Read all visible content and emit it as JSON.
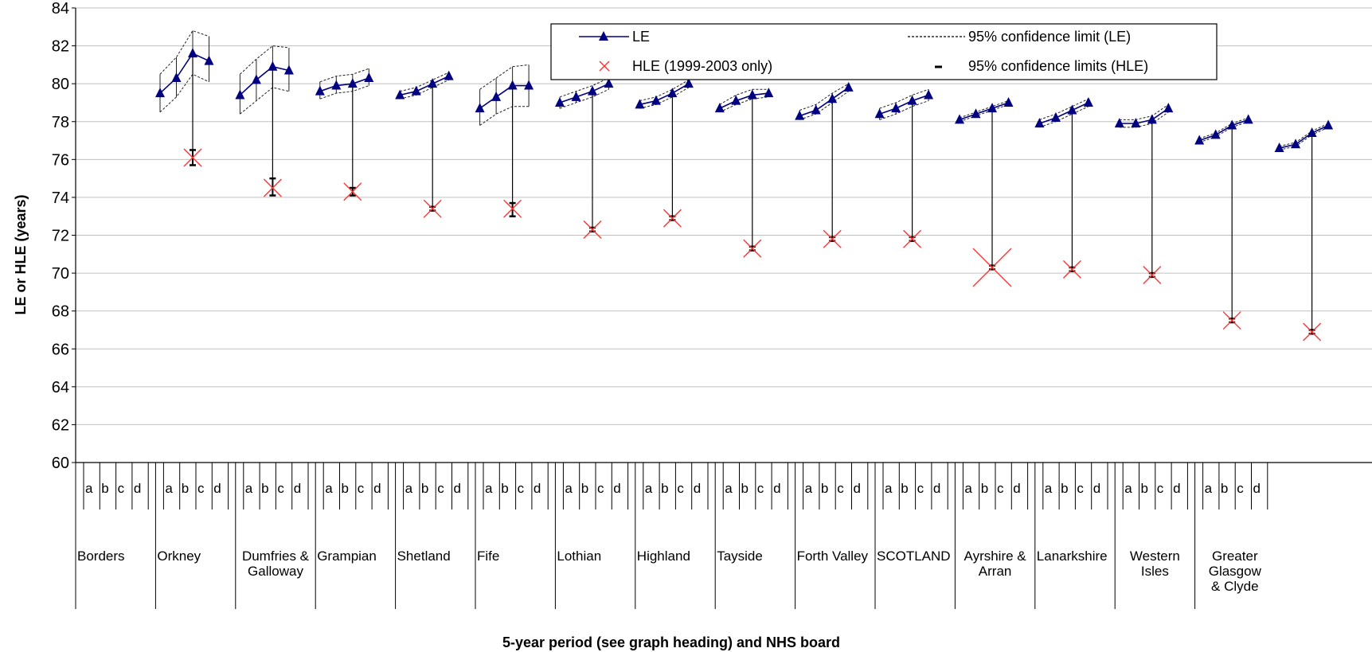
{
  "chart_data": {
    "type": "line",
    "ylabel": "LE or HLE (years)",
    "xlabel": "5-year period (see graph heading) and NHS board",
    "ylim": [
      60,
      84
    ],
    "yticks": [
      60,
      62,
      64,
      66,
      68,
      70,
      72,
      74,
      76,
      78,
      80,
      82,
      84
    ],
    "periods": [
      "a",
      "b",
      "c",
      "d"
    ],
    "grid": "horizontal",
    "legend": {
      "position": "top-right",
      "items": [
        {
          "key": "le",
          "label": "LE"
        },
        {
          "key": "le_ci",
          "label": "95% confidence limit (LE)"
        },
        {
          "key": "hle",
          "label": "HLE (1999-2003  only)"
        },
        {
          "key": "hle_ci",
          "label": "95% confidence limits (HLE)"
        }
      ]
    },
    "colors": {
      "le": "#000080",
      "hle": "#ff3333",
      "grid": "#c0c0c0"
    },
    "boards": [
      {
        "name": "Borders",
        "lines": [
          "Borders"
        ],
        "le": [
          79.5,
          80.3,
          81.6,
          81.2
        ],
        "le_lo": [
          78.5,
          79.3,
          80.5,
          80.1
        ],
        "le_hi": [
          80.5,
          81.4,
          82.8,
          82.5
        ],
        "hle": 76.1,
        "hle_lo": 75.7,
        "hle_hi": 76.5
      },
      {
        "name": "Orkney",
        "lines": [
          "Orkney"
        ],
        "le": [
          79.4,
          80.2,
          80.9,
          80.7
        ],
        "le_lo": [
          78.4,
          79.1,
          79.8,
          79.6
        ],
        "le_hi": [
          80.5,
          81.3,
          82.0,
          81.9
        ],
        "hle": 74.5,
        "hle_lo": 74.1,
        "hle_hi": 75.0
      },
      {
        "name": "Dumfries & Galloway",
        "lines": [
          "Dumfries &",
          "Galloway"
        ],
        "le": [
          79.6,
          79.9,
          80.0,
          80.3
        ],
        "le_lo": [
          79.2,
          79.5,
          79.6,
          79.9
        ],
        "le_hi": [
          80.1,
          80.4,
          80.5,
          80.8
        ],
        "hle": 74.3,
        "hle_lo": 74.1,
        "hle_hi": 74.5
      },
      {
        "name": "Grampian",
        "lines": [
          "Grampian"
        ],
        "le": [
          79.4,
          79.6,
          80.0,
          80.4
        ],
        "le_lo": [
          79.2,
          79.4,
          79.8,
          80.2
        ],
        "le_hi": [
          79.6,
          79.8,
          80.2,
          80.6
        ],
        "hle": 73.4,
        "hle_lo": 73.3,
        "hle_hi": 73.5
      },
      {
        "name": "Shetland",
        "lines": [
          "Shetland"
        ],
        "le": [
          78.7,
          79.3,
          79.9,
          79.9
        ],
        "le_lo": [
          77.8,
          78.4,
          78.8,
          78.8
        ],
        "le_hi": [
          79.7,
          80.3,
          80.9,
          81.0
        ],
        "hle": 73.4,
        "hle_lo": 73.0,
        "hle_hi": 73.7
      },
      {
        "name": "Fife",
        "lines": [
          "Fife"
        ],
        "le": [
          79.0,
          79.3,
          79.6,
          80.0
        ],
        "le_lo": [
          78.7,
          79.0,
          79.3,
          79.7
        ],
        "le_hi": [
          79.3,
          79.6,
          79.9,
          80.3
        ],
        "hle": 72.3,
        "hle_lo": 72.2,
        "hle_hi": 72.4
      },
      {
        "name": "Lothian",
        "lines": [
          "Lothian"
        ],
        "le": [
          78.9,
          79.1,
          79.5,
          80.0
        ],
        "le_lo": [
          78.7,
          78.9,
          79.3,
          79.8
        ],
        "le_hi": [
          79.1,
          79.3,
          79.7,
          80.2
        ],
        "hle": 72.9,
        "hle_lo": 72.8,
        "hle_hi": 73.0
      },
      {
        "name": "Highland",
        "lines": [
          "Highland"
        ],
        "le": [
          78.7,
          79.1,
          79.4,
          79.5
        ],
        "le_lo": [
          78.5,
          78.9,
          79.2,
          79.3
        ],
        "le_hi": [
          78.9,
          79.4,
          79.7,
          79.7
        ],
        "hle": 71.3,
        "hle_lo": 71.2,
        "hle_hi": 71.4
      },
      {
        "name": "Tayside",
        "lines": [
          "Tayside"
        ],
        "le": [
          78.3,
          78.6,
          79.2,
          79.8
        ],
        "le_lo": [
          78.1,
          78.4,
          79.0,
          79.6
        ],
        "le_hi": [
          78.6,
          78.9,
          79.5,
          80.0
        ],
        "hle": 71.8,
        "hle_lo": 71.7,
        "hle_hi": 71.9
      },
      {
        "name": "Forth Valley",
        "lines": [
          "Forth Valley"
        ],
        "le": [
          78.4,
          78.7,
          79.1,
          79.4
        ],
        "le_lo": [
          78.1,
          78.4,
          78.8,
          79.1
        ],
        "le_hi": [
          78.7,
          79.0,
          79.4,
          79.7
        ],
        "hle": 71.8,
        "hle_lo": 71.7,
        "hle_hi": 71.9
      },
      {
        "name": "SCOTLAND",
        "lines": [
          "SCOTLAND"
        ],
        "le": [
          78.1,
          78.4,
          78.7,
          79.0
        ],
        "le_lo": [
          78.0,
          78.3,
          78.6,
          78.9
        ],
        "le_hi": [
          78.2,
          78.5,
          78.8,
          79.1
        ],
        "hle": 70.3,
        "hle_lo": 70.2,
        "hle_hi": 70.4,
        "hle_large": true
      },
      {
        "name": "Ayrshire & Arran",
        "lines": [
          "Ayrshire &",
          "Arran"
        ],
        "le": [
          77.9,
          78.2,
          78.6,
          79.0
        ],
        "le_lo": [
          77.7,
          78.0,
          78.4,
          78.8
        ],
        "le_hi": [
          78.1,
          78.4,
          78.8,
          79.2
        ],
        "hle": 70.2,
        "hle_lo": 70.1,
        "hle_hi": 70.3
      },
      {
        "name": "Lanarkshire",
        "lines": [
          "Lanarkshire"
        ],
        "le": [
          77.9,
          77.9,
          78.1,
          78.7
        ],
        "le_lo": [
          77.7,
          77.7,
          77.9,
          78.5
        ],
        "le_hi": [
          78.1,
          78.1,
          78.3,
          78.9
        ],
        "hle": 69.9,
        "hle_lo": 69.8,
        "hle_hi": 70.0
      },
      {
        "name": "Western Isles",
        "lines": [
          "Western",
          "Isles"
        ],
        "le": [
          77.0,
          77.3,
          77.8,
          78.1
        ],
        "le_lo": [
          76.9,
          77.2,
          77.7,
          78.0
        ],
        "le_hi": [
          77.1,
          77.4,
          77.9,
          78.2
        ],
        "hle": 67.5,
        "hle_lo": 67.4,
        "hle_hi": 67.6
      },
      {
        "name": "Greater Glasgow & Clyde",
        "lines": [
          "Greater",
          "Glasgow",
          "& Clyde"
        ],
        "le": [
          76.6,
          76.8,
          77.4,
          77.8
        ],
        "le_lo": [
          76.5,
          76.7,
          77.3,
          77.7
        ],
        "le_hi": [
          76.7,
          76.9,
          77.5,
          77.9
        ],
        "hle": 66.9,
        "hle_lo": 66.8,
        "hle_hi": 67.0
      }
    ]
  }
}
